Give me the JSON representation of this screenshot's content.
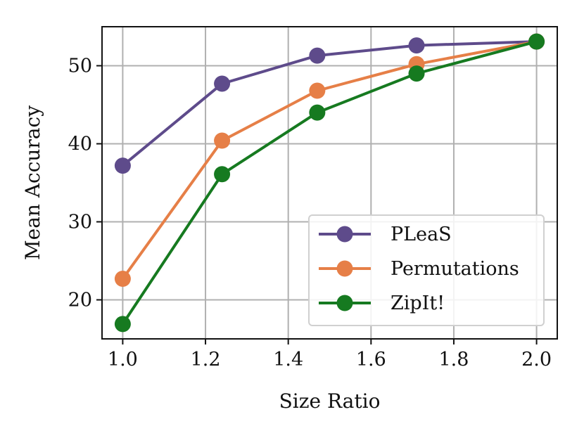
{
  "chart_data": {
    "type": "line",
    "title": "",
    "xlabel": "Size Ratio",
    "ylabel": "Mean Accuracy",
    "xlim": [
      0.95,
      2.05
    ],
    "ylim": [
      15,
      55
    ],
    "xticks": [
      1.0,
      1.2,
      1.4,
      1.6,
      1.8,
      2.0
    ],
    "xtick_labels": [
      "1.0",
      "1.2",
      "1.4",
      "1.6",
      "1.8",
      "2.0"
    ],
    "yticks": [
      20,
      30,
      40,
      50
    ],
    "ytick_labels": [
      "20",
      "30",
      "40",
      "50"
    ],
    "grid": true,
    "legend_position": "bottom-right",
    "series": [
      {
        "name": "PLeaS",
        "color": "#5e4b8b",
        "x": [
          1.0,
          1.24,
          1.47,
          1.71,
          2.0
        ],
        "y": [
          37.2,
          47.7,
          51.3,
          52.6,
          53.1
        ]
      },
      {
        "name": "Permutations",
        "color": "#e67f47",
        "x": [
          1.0,
          1.24,
          1.47,
          1.71,
          2.0
        ],
        "y": [
          22.7,
          40.4,
          46.8,
          50.2,
          53.1
        ]
      },
      {
        "name": "ZipIt!",
        "color": "#167a20",
        "x": [
          1.0,
          1.24,
          1.47,
          1.71,
          2.0
        ],
        "y": [
          16.9,
          36.1,
          44.0,
          49.0,
          53.1
        ]
      }
    ]
  }
}
